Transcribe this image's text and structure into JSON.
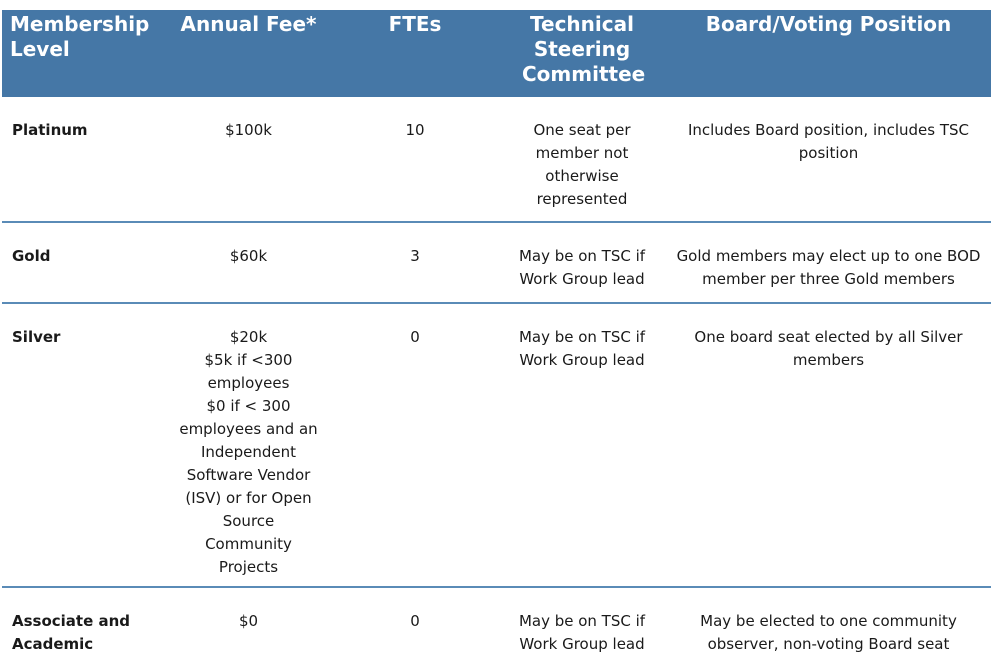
{
  "table": {
    "headers": [
      "Membership Level",
      "Annual Fee*",
      "FTEs",
      "Technical Steering Committee",
      "Board/Voting Position"
    ],
    "rows": [
      {
        "level": "Platinum",
        "fee": [
          "$100k"
        ],
        "ftes": "10",
        "tsc": "One seat per member not otherwise represented",
        "board": "Includes Board position, includes TSC position"
      },
      {
        "level": "Gold",
        "fee": [
          "$60k"
        ],
        "ftes": "3",
        "tsc": "May be on TSC if Work Group lead",
        "board": "Gold members may elect up to one BOD member per three Gold members"
      },
      {
        "level": "Silver",
        "fee": [
          "$20k",
          "$5k if <300 employees",
          "$0 if < 300 employees and an Independent Software Vendor (ISV) or for Open Source Community Projects"
        ],
        "ftes": "0",
        "tsc": "May be on TSC if Work Group lead",
        "board": "One board seat elected by all Silver members"
      },
      {
        "level": "Associate and Academic",
        "fee": [
          "$0"
        ],
        "ftes": "0",
        "tsc": "May be on TSC if Work Group lead",
        "board": "May be elected to one community observer, non-voting Board seat"
      }
    ]
  }
}
